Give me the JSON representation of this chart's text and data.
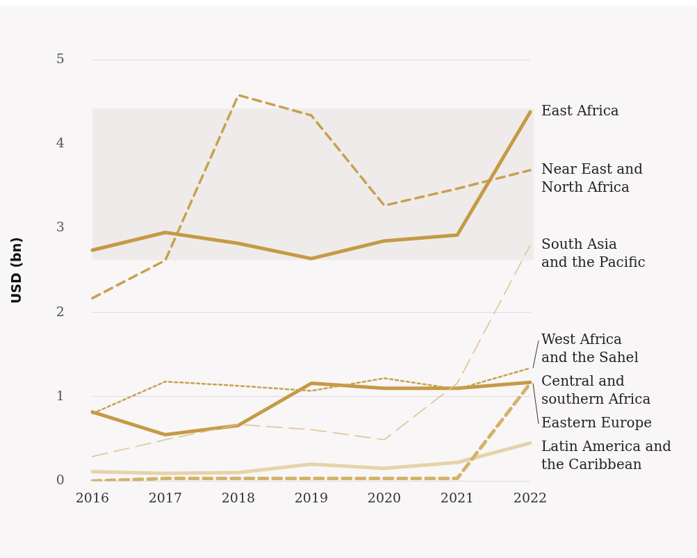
{
  "chart_data": {
    "type": "line",
    "ylabel": "USD (bn)",
    "categories": [
      "2016",
      "2017",
      "2018",
      "2019",
      "2020",
      "2021",
      "2022"
    ],
    "series": [
      {
        "name": "East Africa",
        "color": "#c49a45",
        "line_style": "solid",
        "values": [
          2.74,
          2.95,
          2.82,
          2.64,
          2.85,
          2.92,
          4.38
        ]
      },
      {
        "name": "Near East and\nNorth Africa",
        "color": "#c9a050",
        "line_style": "dashed",
        "values": [
          2.17,
          2.62,
          4.58,
          4.34,
          3.27,
          3.47,
          3.69
        ]
      },
      {
        "name": "South Asia\nand the Pacific",
        "color": "#dcc18d",
        "line_style": "dashed",
        "values": [
          0.29,
          0.49,
          0.67,
          0.61,
          0.49,
          1.16,
          2.8
        ]
      },
      {
        "name": "West Africa\nand the Sahel",
        "color": "#c9a050",
        "line_style": "dotted",
        "values": [
          0.8,
          1.18,
          1.13,
          1.07,
          1.22,
          1.09,
          1.34
        ]
      },
      {
        "name": "Central and\nsouthern Africa",
        "color": "#c49a45",
        "line_style": "solid",
        "values": [
          0.82,
          0.55,
          0.66,
          1.16,
          1.1,
          1.1,
          1.17
        ]
      },
      {
        "name": "Eastern Europe",
        "color": "#d4b26a",
        "line_style": "dashed",
        "values": [
          0,
          0.03,
          0.03,
          0.03,
          0.03,
          0.03,
          1.16
        ]
      },
      {
        "name": "Latin America and\nthe Caribbean",
        "color": "#e5d3aa",
        "line_style": "solid",
        "values": [
          0.11,
          0.09,
          0.1,
          0.2,
          0.15,
          0.22,
          0.45
        ]
      }
    ],
    "ylim": [
      0,
      5
    ],
    "yticks": [
      0,
      1,
      2,
      3,
      4,
      5
    ],
    "grid": "y",
    "legend": false,
    "marker": "none",
    "bands": [
      {
        "axis": "y",
        "from": 2.62,
        "to": 4.42,
        "color": "#efebea"
      }
    ]
  }
}
